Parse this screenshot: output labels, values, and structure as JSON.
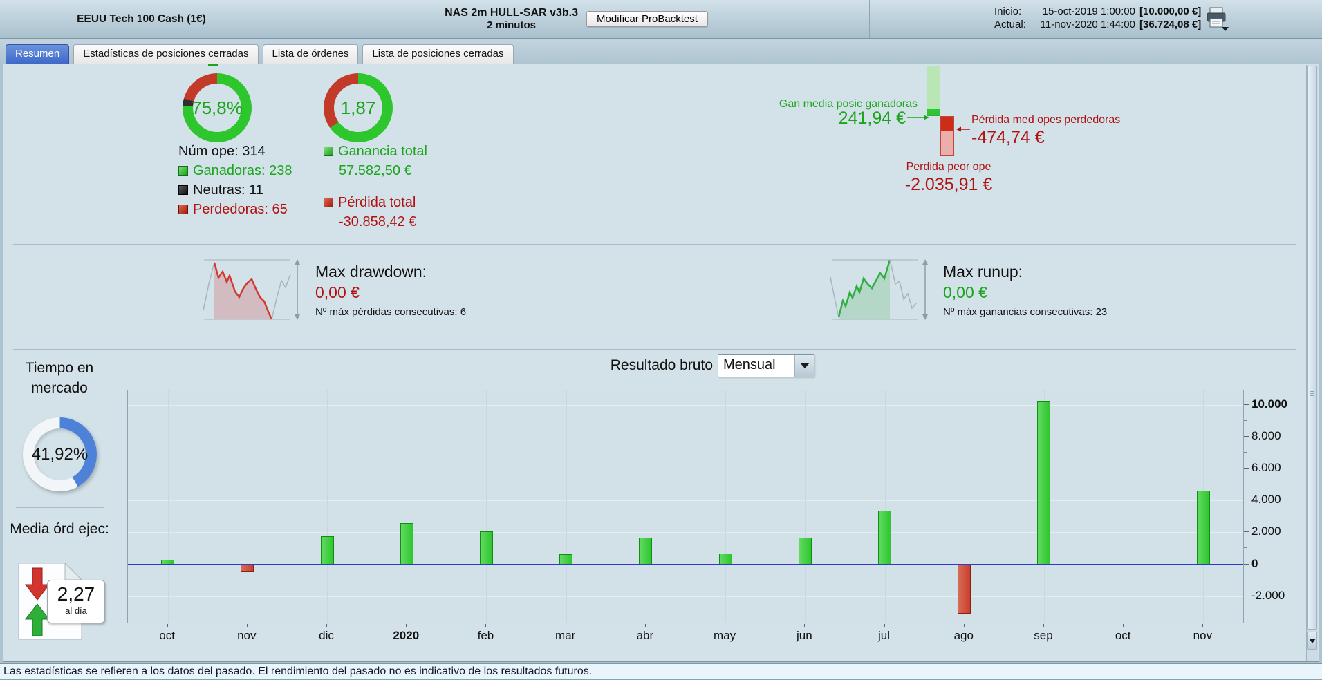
{
  "colors": {
    "panel-bg": "#d3e1e9",
    "green-text": "#1ba51b",
    "red-text": "#b01212",
    "bright-green": "#2dc62d",
    "donut-red": "#c23a28",
    "donut-black": "#2f2f2f",
    "gauge-blue": "#4d82d8",
    "gauge-track": "#f3f6f8",
    "bar-green": "#2ec62e",
    "bar-green-border": "#128c12",
    "bar-red": "#c8402e",
    "bar-red-border": "#8f1d10",
    "zero-line": "#2a3bd0",
    "lightbar-green": "#b9e6b4",
    "lightbar-green-border": "#3aa83a",
    "lightbar-red": "#eaafaa",
    "lightbar-red-border": "#c04438",
    "seg-green": "#2ec62e",
    "seg-red": "#cc2d1a"
  },
  "header": {
    "instrument": "EEUU Tech 100 Cash (1€)",
    "strategy": "NAS 2m HULL-SAR v3b.3",
    "timeframe": "2 minutos",
    "modify_button": "Modificar ProBacktest",
    "start_label": "Inicio:",
    "start_datetime": "15-oct-2019 1:00:00",
    "start_equity": "[10.000,00 €]",
    "current_label": "Actual:",
    "current_datetime": "11-nov-2020 1:44:00",
    "current_equity": "[36.724,08 €]"
  },
  "tabs": {
    "resumen": "Resumen",
    "estadisticas": "Estadísticas de posiciones cerradas",
    "ordenes": "Lista de órdenes",
    "posiciones": "Lista de posiciones cerradas"
  },
  "summary": {
    "win_rate": {
      "value": "75,8%",
      "segments": [
        {
          "color": "bright-green",
          "pct": 75.8
        },
        {
          "color": "donut-black",
          "pct": 3.5
        },
        {
          "color": "donut-red",
          "pct": 20.7
        }
      ]
    },
    "profit_factor": {
      "value": "1,87",
      "segments": [
        {
          "color": "bright-green",
          "pct": 65.1
        },
        {
          "color": "donut-red",
          "pct": 34.9
        }
      ]
    },
    "num_ope": "Núm ope: 314",
    "ganadoras": "Ganadoras: 238",
    "neutras": "Neutras: 11",
    "perdedoras": "Perdedoras: 65",
    "ganancia_total_label": "Ganancia total",
    "ganancia_total_value": "57.582,50 €",
    "perdida_total_label": "Pérdida total",
    "perdida_total_value": "-30.858,42 €",
    "gan_media_label": "Gan media posic ganadoras",
    "gan_media_value": "241,94 €",
    "perdida_media_label": "Pérdida med opes perdedoras",
    "perdida_media_value": "-474,74 €",
    "perdida_peor_label": "Perdida peor ope",
    "perdida_peor_value": "-2.035,91 €"
  },
  "drawdown": {
    "title": "Max drawdown:",
    "value": "0,00 €",
    "note": "Nº máx pérdidas consecutivas: 6"
  },
  "runup": {
    "title": "Max runup:",
    "value": "0,00 €",
    "note": "Nº máx ganancias consecutivas: 23"
  },
  "left_panel": {
    "time_title": "Tiempo en mercado",
    "time_value": "41,92%",
    "time_segments": [
      {
        "color": "gauge-blue",
        "pct": 41.92
      },
      {
        "color": "gauge-track",
        "pct": 58.08
      }
    ],
    "orders_title": "Media órd ejec:",
    "orders_value": "2,27",
    "orders_unit": "al día"
  },
  "chart": {
    "title": "Resultado bruto",
    "period": "Mensual"
  },
  "chart_data": {
    "type": "bar",
    "title": "Resultado bruto",
    "period": "Mensual",
    "categories": [
      "oct",
      "nov",
      "dic",
      "2020",
      "feb",
      "mar",
      "abr",
      "may",
      "jun",
      "jul",
      "ago",
      "sep",
      "oct",
      "nov"
    ],
    "values": [
      280,
      -450,
      1750,
      2600,
      2080,
      620,
      1660,
      660,
      1690,
      3370,
      -3080,
      10250,
      0,
      4620
    ],
    "bold_categories": [
      "2020"
    ],
    "ylabel_side": "right",
    "ylim": [
      -3660,
      10900
    ],
    "y_ticks": [
      {
        "value": 10000,
        "label": "10.000",
        "bold": true
      },
      {
        "value": 8000,
        "label": "8.000",
        "bold": false
      },
      {
        "value": 6000,
        "label": "6.000",
        "bold": false
      },
      {
        "value": 4000,
        "label": "4.000",
        "bold": false
      },
      {
        "value": 2000,
        "label": "2.000",
        "bold": false
      },
      {
        "value": 0,
        "label": "0",
        "bold": true
      },
      {
        "value": -2000,
        "label": "-2.000",
        "bold": false
      }
    ],
    "minor_tick_step": 1000,
    "grid": true,
    "zero_line": true,
    "currency": "EUR"
  },
  "status_bar": "Las estadísticas se refieren a los datos del pasado. El rendimiento del pasado no es indicativo de los resultados futuros."
}
